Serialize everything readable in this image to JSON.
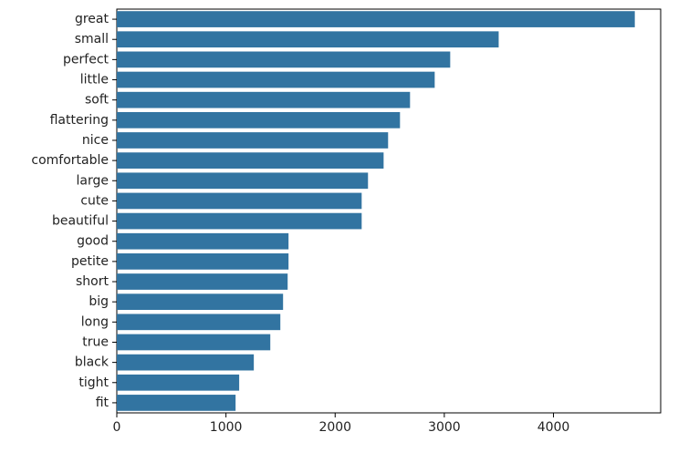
{
  "chart_data": {
    "type": "barh",
    "categories": [
      "great",
      "small",
      "perfect",
      "little",
      "soft",
      "flattering",
      "nice",
      "comfortable",
      "large",
      "cute",
      "beautiful",
      "good",
      "petite",
      "short",
      "big",
      "long",
      "true",
      "black",
      "tight",
      "fit"
    ],
    "values": [
      4745,
      3498,
      3054,
      2912,
      2686,
      2594,
      2485,
      2444,
      2301,
      2243,
      2243,
      1573,
      1573,
      1565,
      1523,
      1498,
      1406,
      1255,
      1121,
      1088
    ],
    "color": "#3274a1",
    "xlim": [
      0,
      4982
    ],
    "xticks": [
      0,
      1000,
      2000,
      3000,
      4000
    ],
    "grid": false
  }
}
